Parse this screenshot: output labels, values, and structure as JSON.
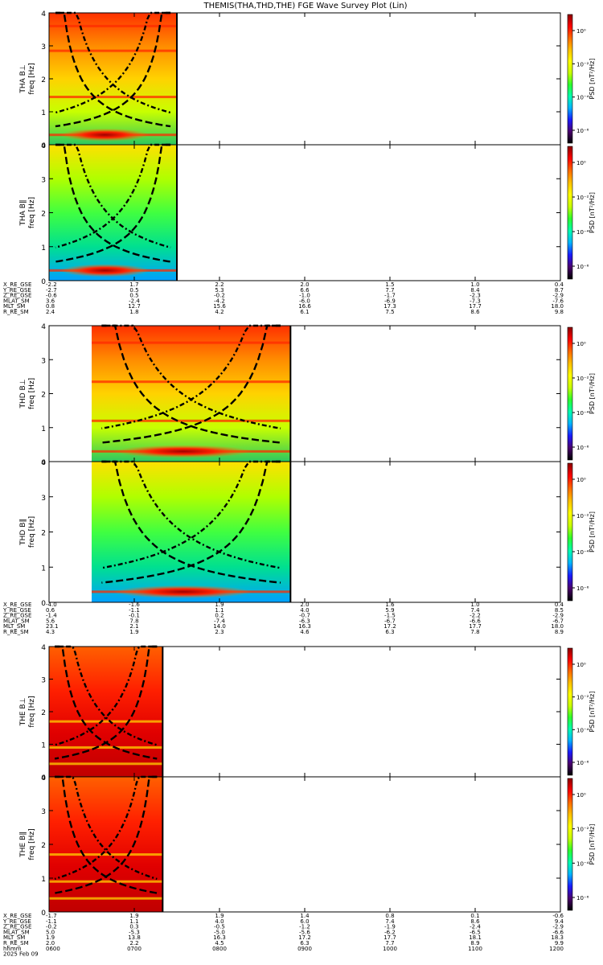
{
  "title": "THEMIS(THA,THD,THE)  FGE  Wave  Survey  Plot  (Lin)",
  "colors": {
    "colorbar": [
      "#000000",
      "#4b006e",
      "#1a1aff",
      "#00b4ff",
      "#00ffb0",
      "#2cff2c",
      "#c8ff00",
      "#ffff00",
      "#ffc000",
      "#ff6a00",
      "#ff0000",
      "#8c0000"
    ],
    "probe_a_bperp_bg": [
      "#2cc860",
      "#c8ff00",
      "#ffd200",
      "#ff8c00",
      "#ff3000"
    ],
    "probe_a_bpar_bg": [
      "#00a0ff",
      "#00e090",
      "#40ff40",
      "#b0ff00",
      "#ffe000"
    ],
    "probe_e_bg": [
      "#c00000",
      "#e00000",
      "#ff2000",
      "#ff6000"
    ],
    "curve": "#000000"
  },
  "colorbar": {
    "unit_label": "PSD [nT²/Hz]",
    "tick_labels": [
      "10⁰",
      "10⁻²",
      "10⁻⁴",
      "10⁻⁶"
    ]
  },
  "panels": [
    {
      "probe": "THA",
      "comp": "B⊥",
      "ylabel": "THA B⊥",
      "freq_label": "freq [Hz]"
    },
    {
      "probe": "THA",
      "comp": "B∥",
      "ylabel": "THA B∥",
      "freq_label": "freq [Hz]"
    },
    {
      "probe": "THD",
      "comp": "B⊥",
      "ylabel": "THD B⊥",
      "freq_label": "freq [Hz]"
    },
    {
      "probe": "THD",
      "comp": "B∥",
      "ylabel": "THD B∥",
      "freq_label": "freq [Hz]"
    },
    {
      "probe": "THE",
      "comp": "B⊥",
      "ylabel": "THE B⊥",
      "freq_label": "freq [Hz]"
    },
    {
      "probe": "THE",
      "comp": "B∥",
      "ylabel": "THE B∥",
      "freq_label": "freq [Hz]"
    }
  ],
  "tables": [
    {
      "rows": [
        {
          "label": "X_RE_GSE",
          "values": [
            "-2.2",
            "1.7",
            "2.2",
            "2.0",
            "1.5",
            "1.0",
            "0.4"
          ]
        },
        {
          "label": "Y_RE_GSE",
          "values": [
            "-2.7",
            "0.5",
            "5.3",
            "6.6",
            "7.7",
            "8.4",
            "8.7"
          ]
        },
        {
          "label": "Z_RE_GSE",
          "values": [
            "-0.6",
            "0.5",
            "-0.2",
            "-1.0",
            "-1.7",
            "-2.3",
            "-2.9"
          ]
        },
        {
          "label": "MLAT_SM",
          "values": [
            "3.6",
            "-2.4",
            "-4.2",
            "-6.0",
            "-6.9",
            "-7.3",
            "-7.6"
          ]
        },
        {
          "label": "MLT_SM",
          "values": [
            "0.8",
            "12.7",
            "15.6",
            "16.6",
            "17.3",
            "17.7",
            "18.0"
          ]
        },
        {
          "label": "R_RE_SM",
          "values": [
            "2.4",
            "1.8",
            "4.2",
            "6.1",
            "7.5",
            "8.6",
            "9.8"
          ]
        }
      ]
    },
    {
      "rows": [
        {
          "label": "X_RE_GSE",
          "values": [
            "-4.0",
            "-1.6",
            "1.9",
            "2.0",
            "1.6",
            "1.0",
            "0.4"
          ]
        },
        {
          "label": "Y_RE_GSE",
          "values": [
            "0.6",
            "-1.1",
            "1.1",
            "4.0",
            "5.9",
            "7.4",
            "8.5"
          ]
        },
        {
          "label": "Z_RE_GSE",
          "values": [
            "-1.4",
            "-0.1",
            "0.2",
            "-0.7",
            "-1.5",
            "-2.2",
            "-2.9"
          ]
        },
        {
          "label": "MLAT_SM",
          "values": [
            "5.6",
            "7.8",
            "-7.4",
            "-6.3",
            "-6.7",
            "-6.6",
            "-6.7"
          ]
        },
        {
          "label": "MLT_SM",
          "values": [
            "23.1",
            "2.1",
            "14.0",
            "16.3",
            "17.2",
            "17.7",
            "18.0"
          ]
        },
        {
          "label": "R_RE_SM",
          "values": [
            "4.3",
            "1.9",
            "2.3",
            "4.6",
            "6.3",
            "7.8",
            "8.9"
          ]
        }
      ]
    },
    {
      "rows": [
        {
          "label": "X_RE_GSE",
          "values": [
            "-1.7",
            "1.9",
            "1.9",
            "1.4",
            "0.8",
            "0.1",
            "-0.6"
          ]
        },
        {
          "label": "Y_RE_GSE",
          "values": [
            "-1.1",
            "1.1",
            "4.0",
            "6.0",
            "7.4",
            "8.6",
            "9.4"
          ]
        },
        {
          "label": "Z_RE_GSE",
          "values": [
            "-0.2",
            "0.3",
            "-0.5",
            "-1.2",
            "-1.9",
            "-2.4",
            "-2.9"
          ]
        },
        {
          "label": "MLAT_SM",
          "values": [
            "5.0",
            "-5.3",
            "-5.0",
            "-5.6",
            "-6.2",
            "-6.5",
            "-6.6"
          ]
        },
        {
          "label": "MLT_SM",
          "values": [
            "1.9",
            "13.8",
            "16.3",
            "17.2",
            "17.7",
            "18.1",
            "18.3"
          ]
        },
        {
          "label": "R_RE_SM",
          "values": [
            "2.0",
            "2.2",
            "4.5",
            "6.3",
            "7.7",
            "8.9",
            "9.9"
          ]
        },
        {
          "label": "hhmm",
          "values": [
            "0600",
            "0700",
            "0800",
            "0900",
            "1000",
            "1100",
            "1200"
          ]
        }
      ],
      "date_label": "2025 Feb 09"
    }
  ],
  "chart_data": {
    "type": "heatmap",
    "title": "THEMIS(THA,THD,THE)  FGE  Wave  Survey  Plot  (Lin)",
    "x_tick_labels": [
      "0600",
      "0700",
      "0800",
      "0900",
      "1000",
      "1100",
      "1200"
    ],
    "x_range": [
      "0600",
      "1200"
    ],
    "y_range": [
      0,
      4
    ],
    "y_ticks": [
      0,
      1,
      2,
      3,
      4
    ],
    "ylabel": "freq [Hz]",
    "zlabel": "PSD [nT²/Hz]",
    "z_scale": "log",
    "z_tick_labels": [
      "10⁰",
      "10⁻²",
      "10⁻⁴",
      "10⁻⁶"
    ],
    "z_range": [
      1e-07,
      10
    ],
    "panels": [
      {
        "name": "THA B⊥",
        "data_range_hhmm": [
          "0600",
          "0730"
        ],
        "regime": "mid",
        "bands": [
          0.3,
          1.45,
          2.85,
          3.6
        ]
      },
      {
        "name": "THA B∥",
        "data_range_hhmm": [
          "0600",
          "0730"
        ],
        "regime": "low",
        "bands": [
          0.3
        ]
      },
      {
        "name": "THD B⊥",
        "data_range_hhmm": [
          "0630",
          "0850"
        ],
        "regime": "mid",
        "bands": [
          0.3,
          1.2,
          2.35,
          3.5
        ]
      },
      {
        "name": "THD B∥",
        "data_range_hhmm": [
          "0630",
          "0850"
        ],
        "regime": "low",
        "bands": [
          0.3
        ]
      },
      {
        "name": "THE B⊥",
        "data_range_hhmm": [
          "0600",
          "0720"
        ],
        "regime": "high",
        "bands": [
          0.4,
          0.9,
          1.7
        ]
      },
      {
        "name": "THE B∥",
        "data_range_hhmm": [
          "0600",
          "0720"
        ],
        "regime": "high",
        "bands": [
          0.4,
          0.9,
          1.7
        ]
      }
    ]
  }
}
